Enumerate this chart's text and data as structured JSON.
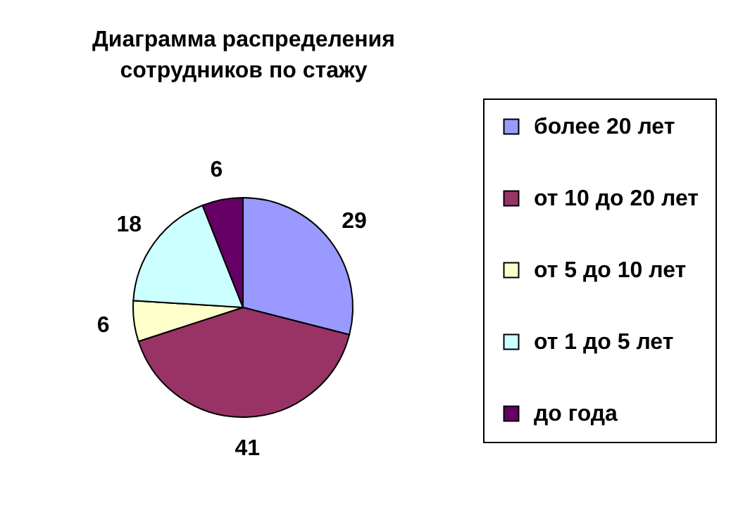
{
  "chart_data": {
    "type": "pie",
    "title": "Диаграмма распределения сотрудников по стажу",
    "categories": [
      "более 20 лет",
      "от 10 до 20 лет",
      "от 5 до 10 лет",
      "от 1 до 5 лет",
      "до года"
    ],
    "values": [
      29,
      41,
      6,
      18,
      6
    ],
    "colors": [
      "#9999ff",
      "#993366",
      "#ffffcc",
      "#ccffff",
      "#660066"
    ],
    "data_labels": true,
    "legend": "right"
  }
}
